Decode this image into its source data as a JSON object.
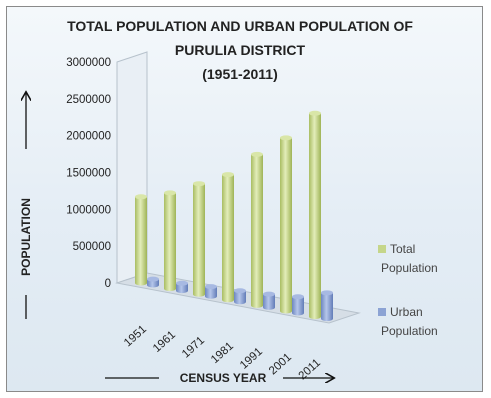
{
  "chart_data": {
    "type": "bar",
    "title": [
      "TOTAL POPULATION AND URBAN POPULATION OF",
      "PURULIA DISTRICT",
      "(1951-2011)"
    ],
    "xlabel": "CENSUS YEAR",
    "ylabel": "POPULATION",
    "categories": [
      "1951",
      "1961",
      "1971",
      "1981",
      "1991",
      "2001",
      "2011"
    ],
    "series": [
      {
        "name": "Total Population",
        "values": [
          1170000,
          1300000,
          1500000,
          1700000,
          2050000,
          2350000,
          2760000
        ],
        "color": "#c5d68a"
      },
      {
        "name": "Urban Population",
        "values": [
          80000,
          100000,
          130000,
          150000,
          180000,
          220000,
          350000
        ],
        "color": "#8ca3d4"
      }
    ],
    "yticks": [
      "0",
      "500000",
      "1000000",
      "1500000",
      "2000000",
      "2500000",
      "3000000"
    ],
    "ylim": [
      0,
      3000000
    ],
    "legend": "right",
    "grid": false,
    "style": "3d-cylinder"
  }
}
